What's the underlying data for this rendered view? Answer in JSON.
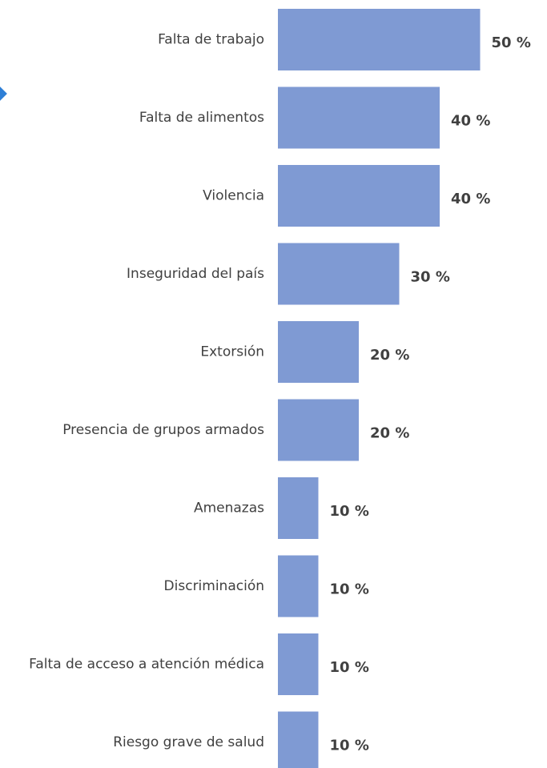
{
  "chart_data": {
    "type": "bar",
    "orientation": "horizontal",
    "categories": [
      "Falta de trabajo",
      "Falta de alimentos",
      "Violencia",
      "Inseguridad del país",
      "Extorsión",
      "Presencia de grupos armados",
      "Amenazas",
      "Discriminación",
      "Falta de acceso a atención médica",
      "Riesgo grave de salud"
    ],
    "values": [
      50,
      40,
      40,
      30,
      20,
      20,
      10,
      10,
      10,
      10
    ],
    "value_labels": [
      "50 %",
      "40 %",
      "40 %",
      "30 %",
      "20 %",
      "20 %",
      "10 %",
      "10 %",
      "10 %",
      "10 %"
    ],
    "xlim": [
      0,
      50
    ],
    "grid": false,
    "legend": "none",
    "bar_color": "#7f9ad3"
  },
  "decoration": {
    "marker_color": "#2e7fd6"
  }
}
